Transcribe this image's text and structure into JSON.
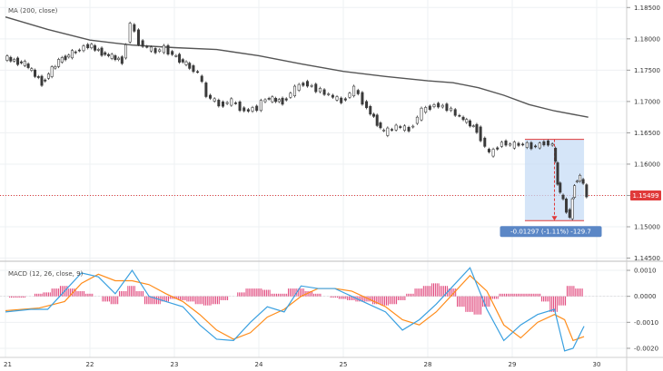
{
  "chart_data": [
    {
      "type": "line",
      "title": "",
      "indicator_label": "MA (200, close)",
      "price_axis": {
        "ticks": [
          "1.18500",
          "1.18000",
          "1.17500",
          "1.17000",
          "1.16500",
          "1.16000",
          "1.15500",
          "1.15000",
          "1.14500"
        ],
        "ylim": [
          1.1445,
          1.1862
        ]
      },
      "x_axis": {
        "ticks": [
          "21",
          "22",
          "23",
          "24",
          "25",
          "28",
          "29",
          "30"
        ],
        "xlim": [
          0,
          9.8
        ]
      },
      "last_price_label": "1.15499",
      "last_price": 1.15499,
      "measure": {
        "label": "-0.01297 (-1.11%) -129.7",
        "x_start": 6.15,
        "x_end": 6.85,
        "price_high": 1.16395,
        "price_low": 1.15098
      },
      "price_series": {
        "name": "",
        "x": [
          0.0,
          0.25,
          0.45,
          0.65,
          0.85,
          1.0,
          1.2,
          1.4,
          1.5,
          1.6,
          1.7,
          1.8,
          1.9,
          2.0,
          2.2,
          2.3,
          2.4,
          2.55,
          2.7,
          2.85,
          3.0,
          3.1,
          3.3,
          3.45,
          3.55,
          3.7,
          3.85,
          4.0,
          4.15,
          4.3,
          4.5,
          4.65,
          4.8,
          4.95,
          5.1,
          5.25,
          5.4,
          5.6,
          5.75,
          5.9,
          6.0,
          6.1,
          6.2,
          6.3,
          6.4,
          6.5,
          6.55,
          6.62,
          6.7,
          6.75,
          6.82,
          6.9
        ],
        "values": [
          1.177,
          1.176,
          1.173,
          1.1765,
          1.178,
          1.179,
          1.1775,
          1.1765,
          1.1825,
          1.1795,
          1.1785,
          1.178,
          1.1785,
          1.1775,
          1.1755,
          1.1745,
          1.171,
          1.1695,
          1.17,
          1.1685,
          1.169,
          1.1705,
          1.17,
          1.172,
          1.173,
          1.172,
          1.171,
          1.17,
          1.172,
          1.169,
          1.165,
          1.166,
          1.1655,
          1.1685,
          1.1695,
          1.169,
          1.1675,
          1.1655,
          1.1615,
          1.1635,
          1.163,
          1.1632,
          1.163,
          1.1628,
          1.1635,
          1.163,
          1.157,
          1.154,
          1.1515,
          1.157,
          1.158,
          1.15499
        ]
      },
      "ma_series": {
        "name": "",
        "x": [
          0.0,
          0.5,
          1.0,
          1.5,
          2.0,
          2.5,
          3.0,
          3.5,
          4.0,
          4.5,
          5.0,
          5.3,
          5.6,
          5.9,
          6.2,
          6.5,
          6.9
        ],
        "values": [
          1.1835,
          1.1815,
          1.1798,
          1.179,
          1.1786,
          1.1783,
          1.1773,
          1.176,
          1.1748,
          1.174,
          1.1733,
          1.173,
          1.1722,
          1.171,
          1.1695,
          1.1685,
          1.1675
        ]
      }
    },
    {
      "type": "line",
      "title": "",
      "indicator_label": "MACD (12, 26, close, 9)",
      "y_axis": {
        "ticks": [
          "0.0010",
          "0.0000",
          "-0.0010",
          "-0.0020"
        ],
        "ylim": [
          -0.00235,
          0.00135
        ]
      },
      "macd": {
        "x": [
          0.0,
          0.3,
          0.5,
          0.7,
          0.9,
          1.1,
          1.3,
          1.5,
          1.7,
          1.9,
          2.1,
          2.3,
          2.5,
          2.7,
          2.9,
          3.1,
          3.3,
          3.5,
          3.7,
          3.9,
          4.1,
          4.3,
          4.5,
          4.7,
          4.9,
          5.1,
          5.3,
          5.5,
          5.7,
          5.9,
          6.1,
          6.3,
          6.5,
          6.62,
          6.72,
          6.85
        ],
        "values": [
          -0.0006,
          -0.0005,
          -0.0005,
          0.0002,
          0.0009,
          0.00075,
          0.0001,
          0.001,
          0.0,
          -0.0002,
          -0.0004,
          -0.0011,
          -0.00165,
          -0.0017,
          -0.001,
          -0.0004,
          -0.0006,
          0.0004,
          0.0003,
          0.0003,
          0.0,
          -0.0003,
          -0.0006,
          -0.0013,
          -0.0009,
          -0.0003,
          0.0004,
          0.0011,
          -0.0005,
          -0.0017,
          -0.0011,
          -0.0007,
          -0.0005,
          -0.0021,
          -0.002,
          -0.00115
        ]
      },
      "signal": {
        "x": [
          0.0,
          0.4,
          0.7,
          0.9,
          1.1,
          1.3,
          1.5,
          1.7,
          1.9,
          2.1,
          2.3,
          2.5,
          2.7,
          2.9,
          3.1,
          3.3,
          3.5,
          3.7,
          3.9,
          4.1,
          4.3,
          4.5,
          4.7,
          4.9,
          5.1,
          5.3,
          5.5,
          5.7,
          5.9,
          6.1,
          6.3,
          6.5,
          6.62,
          6.72,
          6.85
        ],
        "values": [
          -0.00055,
          -0.00045,
          -0.0002,
          0.0005,
          0.00085,
          0.0006,
          0.0006,
          0.00045,
          0.0001,
          -0.0002,
          -0.0007,
          -0.0013,
          -0.00165,
          -0.0014,
          -0.0008,
          -0.0005,
          0.0,
          0.0003,
          0.0003,
          0.0002,
          -0.0001,
          -0.0004,
          -0.0009,
          -0.0011,
          -0.0006,
          0.0001,
          0.0008,
          0.0002,
          -0.0011,
          -0.0016,
          -0.001,
          -0.0007,
          -0.0009,
          -0.0017,
          -0.00155
        ]
      },
      "histogram": {
        "x": [
          0.1,
          0.2,
          0.3,
          0.4,
          0.5,
          0.6,
          0.7,
          0.8,
          0.9,
          1.0,
          1.1,
          1.2,
          1.3,
          1.4,
          1.5,
          1.6,
          1.7,
          1.8,
          1.9,
          2.0,
          2.1,
          2.2,
          2.3,
          2.4,
          2.5,
          2.6,
          2.7,
          2.8,
          2.9,
          3.0,
          3.1,
          3.2,
          3.3,
          3.4,
          3.5,
          3.6,
          3.7,
          3.8,
          3.9,
          4.0,
          4.1,
          4.2,
          4.3,
          4.4,
          4.5,
          4.6,
          4.7,
          4.8,
          4.9,
          5.0,
          5.1,
          5.2,
          5.3,
          5.4,
          5.5,
          5.6,
          5.7,
          5.8,
          5.9,
          6.0,
          6.1,
          6.2,
          6.3,
          6.4,
          6.5,
          6.6,
          6.7,
          6.8
        ],
        "values": [
          -5e-05,
          -5e-05,
          0.0,
          0.0001,
          0.00015,
          0.0003,
          0.0004,
          0.0003,
          0.0002,
          0.0001,
          0.0,
          -0.0002,
          -0.0003,
          0.0002,
          0.0004,
          0.0002,
          -0.0003,
          -0.0003,
          -0.0002,
          -0.0001,
          -0.00015,
          -0.0002,
          -0.0003,
          -0.00035,
          -0.0003,
          -0.00015,
          0.0,
          0.00015,
          0.0003,
          0.0003,
          0.00025,
          0.0001,
          0.0001,
          0.0003,
          0.0003,
          0.0002,
          0.0001,
          0.0,
          -5e-05,
          -0.0001,
          -0.00015,
          -0.0002,
          -0.0002,
          -0.0003,
          -0.00035,
          -0.0003,
          -0.00015,
          0.0001,
          0.0003,
          0.0004,
          0.0005,
          0.0004,
          0.0003,
          -0.0004,
          -0.0006,
          -0.0007,
          -0.0004,
          -0.0001,
          0.0001,
          0.0001,
          0.0001,
          0.0001,
          0.0001,
          -0.0002,
          -0.0006,
          -0.00035,
          0.0004,
          0.0003
        ]
      }
    }
  ],
  "colors": {
    "candle": "#3a3a3a",
    "ma": "#555555",
    "macd": "#3aa0e0",
    "signal": "#ff8c1a",
    "histogram": "#e0447a",
    "last_price": "#e03a3a",
    "measure_fill": "#c7dcf5",
    "measure_edge": "#e03a3a",
    "measure_label_bg": "#5b87c6"
  }
}
